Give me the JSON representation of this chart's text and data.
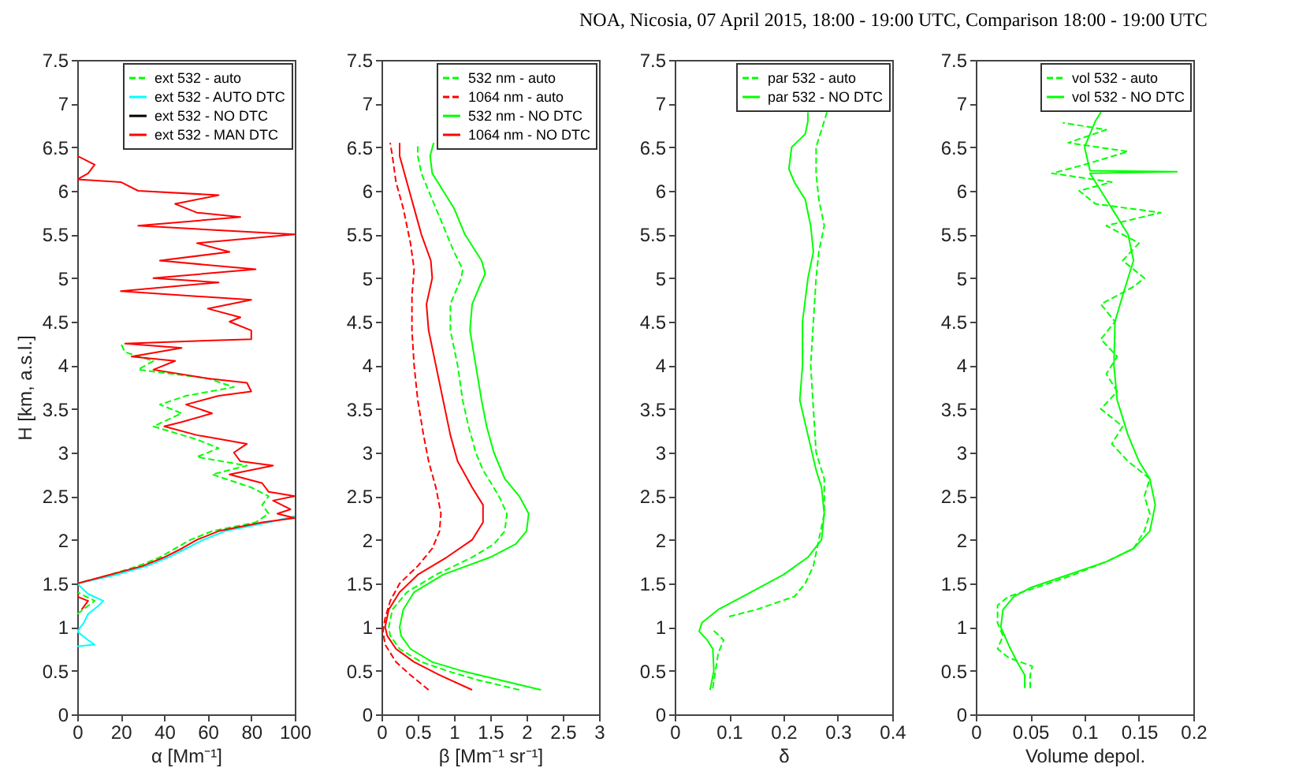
{
  "chart_data": [
    {
      "type": "line",
      "xlabel": "α [Mm⁻¹]",
      "ylabel": "H [km, a.s.l.]",
      "xlim": [
        0,
        100
      ],
      "xticks": [
        0,
        20,
        40,
        60,
        80,
        100
      ],
      "ylim": [
        0,
        7.5
      ],
      "yticks": [
        0,
        0.5,
        1,
        1.5,
        2,
        2.5,
        3,
        3.5,
        4,
        4.5,
        5,
        5.5,
        6,
        6.5,
        7,
        7.5
      ],
      "legend": "top right",
      "series": [
        {
          "name": "ext 532 - auto",
          "color": "#00ff00",
          "line_style": "dashed",
          "x": [
            0,
            8,
            0,
            0,
            15,
            28,
            38,
            45,
            52,
            62,
            82,
            88,
            85,
            88,
            80,
            62,
            78,
            55,
            65,
            55,
            35,
            48,
            38,
            50,
            72,
            60,
            28,
            35,
            22,
            20
          ],
          "values": [
            1.15,
            1.3,
            1.4,
            1.5,
            1.6,
            1.7,
            1.8,
            1.9,
            2.0,
            2.1,
            2.2,
            2.3,
            2.4,
            2.5,
            2.6,
            2.75,
            2.85,
            2.95,
            3.05,
            3.15,
            3.3,
            3.45,
            3.55,
            3.65,
            3.75,
            3.85,
            3.95,
            4.05,
            4.15,
            4.25
          ]
        },
        {
          "name": "ext 532 - AUTO DTC",
          "color": "#00ffff",
          "line_style": "solid",
          "x": [
            0,
            8,
            5,
            0,
            3,
            5,
            10,
            12,
            5,
            2,
            0,
            18,
            32,
            42,
            50,
            58,
            68,
            88,
            100
          ],
          "values": [
            0.78,
            0.8,
            0.85,
            0.95,
            1.05,
            1.15,
            1.25,
            1.3,
            1.38,
            1.45,
            1.5,
            1.6,
            1.7,
            1.8,
            1.9,
            2.0,
            2.1,
            2.2,
            2.27
          ]
        },
        {
          "name": "ext 532 - NO DTC",
          "color": "#000000",
          "line_style": "solid",
          "x": [
            null,
            null
          ],
          "values": [
            null,
            null
          ]
        },
        {
          "name": "ext 532 - MAN DTC",
          "color": "#ff0000",
          "line_style": "solid",
          "x": [
            2,
            5,
            0,
            0,
            15,
            30,
            40,
            48,
            55,
            65,
            85,
            100,
            92,
            98,
            90,
            100,
            88,
            85,
            70,
            90,
            75,
            72,
            78,
            55,
            40,
            48,
            62,
            50,
            65,
            80,
            78,
            60,
            35,
            45,
            25,
            48,
            22,
            80,
            80,
            70,
            75,
            60,
            80,
            20,
            65,
            35,
            82,
            38,
            70,
            55,
            100,
            28,
            75,
            55,
            45,
            65,
            28,
            20,
            0,
            5,
            8,
            0
          ],
          "values": [
            1.2,
            1.3,
            1.35,
            1.5,
            1.6,
            1.7,
            1.8,
            1.9,
            2.0,
            2.1,
            2.2,
            2.25,
            2.3,
            2.35,
            2.45,
            2.5,
            2.55,
            2.65,
            2.75,
            2.85,
            2.9,
            3.0,
            3.1,
            3.2,
            3.3,
            3.35,
            3.45,
            3.55,
            3.65,
            3.7,
            3.8,
            3.85,
            3.95,
            4.05,
            4.1,
            4.2,
            4.25,
            4.3,
            4.4,
            4.5,
            4.55,
            4.65,
            4.75,
            4.85,
            4.95,
            5.0,
            5.1,
            5.2,
            5.3,
            5.4,
            5.5,
            5.6,
            5.7,
            5.75,
            5.85,
            5.95,
            6.0,
            6.1,
            6.13,
            6.2,
            6.3,
            6.4
          ]
        }
      ]
    },
    {
      "type": "line",
      "xlabel": "β [Mm⁻¹ sr⁻¹]",
      "xlim": [
        0,
        3
      ],
      "xticks": [
        0,
        0.5,
        1,
        1.5,
        2,
        2.5,
        3
      ],
      "ylim": [
        0,
        7.5
      ],
      "yticks": [
        0,
        0.5,
        1,
        1.5,
        2,
        2.5,
        3,
        3.5,
        4,
        4.5,
        5,
        5.5,
        6,
        6.5,
        7,
        7.5
      ],
      "legend": "top right",
      "series": [
        {
          "name": "532 nm - auto",
          "color": "#00ff00",
          "line_style": "dashed",
          "x": [
            1.9,
            1.3,
            0.9,
            0.55,
            0.25,
            0.12,
            0.1,
            0.15,
            0.35,
            0.75,
            1.25,
            1.55,
            1.7,
            1.73,
            1.62,
            1.4,
            1.3,
            1.2,
            1.12,
            1.05,
            0.95,
            0.95,
            1.1,
            1.12,
            1.0,
            0.85,
            0.7,
            0.55,
            0.5,
            0.5
          ],
          "values": [
            0.28,
            0.4,
            0.5,
            0.6,
            0.75,
            0.9,
            1.0,
            1.2,
            1.4,
            1.6,
            1.8,
            1.95,
            2.1,
            2.3,
            2.5,
            2.8,
            3.0,
            3.3,
            3.6,
            4.0,
            4.4,
            4.7,
            5.0,
            5.1,
            5.3,
            5.6,
            5.9,
            6.2,
            6.4,
            6.55
          ]
        },
        {
          "name": "1064 nm - auto",
          "color": "#ff0000",
          "line_style": "dashed",
          "x": [
            0.65,
            0.4,
            0.2,
            0.05,
            0.02,
            0.05,
            0.12,
            0.25,
            0.5,
            0.7,
            0.8,
            0.82,
            0.75,
            0.65,
            0.58,
            0.5,
            0.45,
            0.42,
            0.42,
            0.45,
            0.4,
            0.3,
            0.2,
            0.15,
            0.12
          ],
          "values": [
            0.28,
            0.45,
            0.6,
            0.8,
            0.95,
            1.1,
            1.3,
            1.5,
            1.7,
            1.9,
            2.1,
            2.3,
            2.6,
            2.9,
            3.2,
            3.6,
            4.0,
            4.4,
            4.8,
            5.1,
            5.4,
            5.8,
            6.1,
            6.4,
            6.55
          ]
        },
        {
          "name": "532 nm - NO DTC",
          "color": "#00ff00",
          "line_style": "solid",
          "x": [
            2.2,
            1.6,
            1.1,
            0.7,
            0.4,
            0.27,
            0.25,
            0.3,
            0.45,
            0.85,
            1.5,
            1.85,
            2.0,
            2.03,
            1.9,
            1.7,
            1.55,
            1.45,
            1.38,
            1.3,
            1.22,
            1.25,
            1.35,
            1.43,
            1.38,
            1.15,
            1.0,
            0.85,
            0.7,
            0.67,
            0.72
          ],
          "values": [
            0.28,
            0.4,
            0.5,
            0.6,
            0.75,
            0.9,
            1.0,
            1.2,
            1.4,
            1.6,
            1.8,
            1.95,
            2.1,
            2.3,
            2.5,
            2.7,
            3.0,
            3.3,
            3.6,
            4.0,
            4.4,
            4.7,
            4.9,
            5.05,
            5.2,
            5.5,
            5.8,
            6.0,
            6.2,
            6.4,
            6.55
          ]
        },
        {
          "name": "1064 nm - NO DTC",
          "color": "#ff0000",
          "line_style": "solid",
          "x": [
            1.25,
            0.8,
            0.45,
            0.2,
            0.08,
            0.05,
            0.1,
            0.25,
            0.5,
            0.9,
            1.25,
            1.4,
            1.4,
            1.25,
            1.05,
            0.95,
            0.85,
            0.75,
            0.65,
            0.62,
            0.7,
            0.68,
            0.55,
            0.45,
            0.35,
            0.25,
            0.25
          ],
          "values": [
            0.28,
            0.45,
            0.6,
            0.75,
            0.9,
            1.0,
            1.2,
            1.4,
            1.6,
            1.8,
            2.0,
            2.2,
            2.4,
            2.6,
            2.9,
            3.2,
            3.6,
            4.0,
            4.4,
            4.7,
            5.0,
            5.2,
            5.5,
            5.8,
            6.1,
            6.4,
            6.55
          ]
        }
      ]
    },
    {
      "type": "line",
      "xlabel": "δ",
      "xlim": [
        0,
        0.4
      ],
      "xticks": [
        0,
        0.1,
        0.2,
        0.3,
        0.4
      ],
      "ylim": [
        0,
        7.5
      ],
      "yticks": [
        0,
        0.5,
        1,
        1.5,
        2,
        2.5,
        3,
        3.5,
        4,
        4.5,
        5,
        5.5,
        6,
        6.5,
        7,
        7.5
      ],
      "legend": "top right",
      "series": [
        {
          "name": "par 532 - auto",
          "color": "#00ff00",
          "line_style": "dashed",
          "x": [
            0.07,
            0.075,
            0.08,
            0.09,
            0.07,
            null,
            0.1,
            0.15,
            0.22,
            0.24,
            0.255,
            0.265,
            0.275,
            0.275,
            0.26,
            0.255,
            0.25,
            0.255,
            0.26,
            0.265,
            0.275,
            0.265,
            0.26,
            0.26,
            0.27,
            0.28
          ],
          "values": [
            0.3,
            0.5,
            0.7,
            0.85,
            0.97,
            null,
            1.12,
            1.2,
            1.35,
            1.5,
            1.7,
            2.0,
            2.3,
            2.7,
            3.0,
            3.5,
            4.0,
            4.5,
            5.0,
            5.3,
            5.6,
            5.9,
            6.2,
            6.5,
            6.7,
            6.9
          ]
        },
        {
          "name": "par 532 - NO DTC",
          "color": "#00ff00",
          "line_style": "solid",
          "x": [
            0.065,
            0.072,
            0.07,
            0.06,
            0.045,
            0.05,
            0.08,
            0.14,
            0.2,
            0.245,
            0.27,
            0.275,
            0.27,
            0.26,
            0.245,
            0.23,
            0.235,
            0.235,
            0.245,
            0.255,
            0.25,
            0.24,
            0.22,
            0.21,
            0.215,
            0.24,
            0.245,
            0.245
          ],
          "values": [
            0.28,
            0.5,
            0.75,
            0.85,
            0.95,
            1.05,
            1.2,
            1.4,
            1.6,
            1.8,
            2.0,
            2.3,
            2.6,
            2.8,
            3.2,
            3.6,
            4.0,
            4.5,
            5.0,
            5.3,
            5.6,
            5.9,
            6.1,
            6.25,
            6.5,
            6.65,
            6.8,
            6.9
          ]
        }
      ]
    },
    {
      "type": "line",
      "title": "NOA, Nicosia, 07 April 2015, 18:00 - 19:00 UTC, Comparison 18:00 - 19:00 UTC",
      "xlabel": "Volume depol.",
      "xlim": [
        0,
        0.2
      ],
      "xticks": [
        0,
        0.05,
        0.1,
        0.15,
        0.2
      ],
      "ylim": [
        0,
        7.5
      ],
      "yticks": [
        0,
        0.5,
        1,
        1.5,
        2,
        2.5,
        3,
        3.5,
        4,
        4.5,
        5,
        5.5,
        6,
        6.5,
        7,
        7.5
      ],
      "legend": "top right",
      "series": [
        {
          "name": "vol 532 - auto",
          "color": "#00ff00",
          "line_style": "dashed",
          "x": [
            0.05,
            0.05,
            0.052,
            0.03,
            0.02,
            0.025,
            0.02,
            0.02,
            0.03,
            0.055,
            0.09,
            0.12,
            0.145,
            0.155,
            0.16,
            0.155,
            0.16,
            0.14,
            0.125,
            0.135,
            0.115,
            0.13,
            0.12,
            0.13,
            0.115,
            0.128,
            0.115,
            0.145,
            0.155,
            0.135,
            0.15,
            0.12,
            0.17,
            0.11,
            0.095,
            0.125,
            0.07,
            0.1,
            0.14,
            0.085,
            0.12,
            0.08
          ],
          "values": [
            0.3,
            0.45,
            0.55,
            0.65,
            0.75,
            0.9,
            1.05,
            1.25,
            1.35,
            1.45,
            1.6,
            1.75,
            1.9,
            2.1,
            2.3,
            2.5,
            2.7,
            2.9,
            3.1,
            3.3,
            3.5,
            3.7,
            3.9,
            4.1,
            4.3,
            4.5,
            4.7,
            4.9,
            5.0,
            5.2,
            5.4,
            5.6,
            5.75,
            5.85,
            6.0,
            6.1,
            6.2,
            6.3,
            6.45,
            6.55,
            6.7,
            6.78
          ]
        },
        {
          "name": "vol 532 - NO DTC",
          "color": "#00ff00",
          "line_style": "solid",
          "x": [
            0.045,
            0.045,
            0.038,
            0.03,
            0.023,
            0.025,
            0.035,
            0.05,
            0.085,
            0.12,
            0.145,
            0.16,
            0.165,
            0.16,
            0.15,
            0.14,
            0.13,
            0.127,
            0.128,
            0.135,
            0.145,
            0.14,
            0.125,
            0.115,
            0.105,
            0.185,
            0.105,
            0.1,
            0.11,
            0.115
          ],
          "values": [
            0.3,
            0.45,
            0.6,
            0.8,
            1.0,
            1.2,
            1.35,
            1.45,
            1.6,
            1.75,
            1.9,
            2.1,
            2.4,
            2.7,
            2.9,
            3.2,
            3.6,
            4.0,
            4.5,
            4.8,
            5.2,
            5.5,
            5.8,
            6.0,
            6.2,
            6.22,
            6.23,
            6.5,
            6.8,
            6.9
          ]
        }
      ]
    }
  ]
}
